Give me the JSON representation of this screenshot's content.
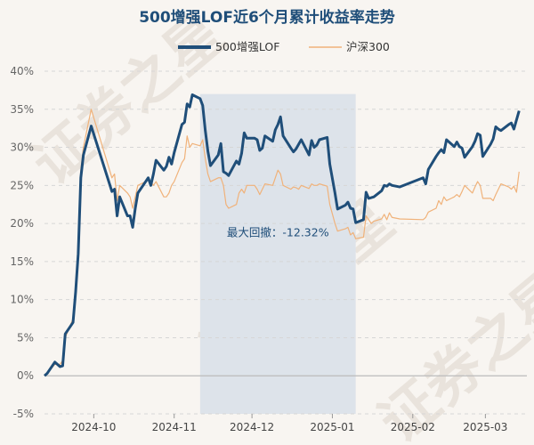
{
  "chart_data": {
    "type": "line",
    "title": "500增强LOF近6个月累计收益率走势",
    "legend": {
      "position": "top",
      "entries": [
        "500增强LOF",
        "沪深300"
      ]
    },
    "watermark": "证券之星",
    "colors": {
      "fund": "#1f4e79",
      "index": "#f0b27a",
      "drawdown_band": "#dde3ea",
      "zero_line": "#bbbbbb"
    },
    "grid": true,
    "y_axis": {
      "ticks": [
        -5,
        0,
        5,
        10,
        15,
        20,
        25,
        30,
        35,
        40
      ],
      "tick_labels": [
        "-5%",
        "0%",
        "5%",
        "10%",
        "15%",
        "20%",
        "25%",
        "30%",
        "35%",
        "40%"
      ],
      "ylim": [
        -5,
        40
      ]
    },
    "x_axis": {
      "range": [
        "2024-09-12",
        "2025-03-17"
      ],
      "ticks": [
        {
          "label": "2024-10",
          "date": "2024-10-01"
        },
        {
          "label": "2024-11",
          "date": "2024-11-01"
        },
        {
          "label": "2024-12",
          "date": "2024-12-01"
        },
        {
          "label": "2025-01",
          "date": "2025-01-01"
        },
        {
          "label": "2025-02",
          "date": "2025-02-01"
        },
        {
          "label": "2025-03",
          "date": "2025-03-01"
        }
      ]
    },
    "drawdown": {
      "label": "最大回撤：-12.32%",
      "start": "2024-11-11",
      "end": "2025-01-10"
    },
    "series": [
      {
        "name": "500增强LOF",
        "points": [
          [
            "2024-09-12",
            0.0
          ],
          [
            "2024-09-13",
            0.3
          ],
          [
            "2024-09-16",
            1.8
          ],
          [
            "2024-09-18",
            1.2
          ],
          [
            "2024-09-19",
            1.3
          ],
          [
            "2024-09-20",
            5.5
          ],
          [
            "2024-09-23",
            7.0
          ],
          [
            "2024-09-24",
            11.0
          ],
          [
            "2024-09-25",
            16.0
          ],
          [
            "2024-09-26",
            26.0
          ],
          [
            "2024-09-27",
            29.0
          ],
          [
            "2024-09-30",
            32.8
          ],
          [
            "2024-10-08",
            24.2
          ],
          [
            "2024-10-09",
            24.5
          ],
          [
            "2024-10-10",
            21.0
          ],
          [
            "2024-10-11",
            23.5
          ],
          [
            "2024-10-14",
            21.0
          ],
          [
            "2024-10-15",
            21.0
          ],
          [
            "2024-10-16",
            19.5
          ],
          [
            "2024-10-17",
            22.0
          ],
          [
            "2024-10-18",
            24.0
          ],
          [
            "2024-10-21",
            25.5
          ],
          [
            "2024-10-22",
            26.0
          ],
          [
            "2024-10-23",
            25.0
          ],
          [
            "2024-10-24",
            26.5
          ],
          [
            "2024-10-25",
            28.3
          ],
          [
            "2024-10-28",
            27.0
          ],
          [
            "2024-10-29",
            27.5
          ],
          [
            "2024-10-30",
            28.7
          ],
          [
            "2024-10-31",
            27.8
          ],
          [
            "2024-11-01",
            29.3
          ],
          [
            "2024-11-04",
            33.0
          ],
          [
            "2024-11-05",
            33.3
          ],
          [
            "2024-11-06",
            35.7
          ],
          [
            "2024-11-07",
            35.3
          ],
          [
            "2024-11-08",
            36.9
          ],
          [
            "2024-11-11",
            36.4
          ],
          [
            "2024-11-12",
            35.5
          ],
          [
            "2024-11-13",
            32.2
          ],
          [
            "2024-11-14",
            29.5
          ],
          [
            "2024-11-15",
            27.6
          ],
          [
            "2024-11-18",
            29.0
          ],
          [
            "2024-11-19",
            30.5
          ],
          [
            "2024-11-20",
            26.8
          ],
          [
            "2024-11-21",
            26.6
          ],
          [
            "2024-11-22",
            26.3
          ],
          [
            "2024-11-25",
            28.2
          ],
          [
            "2024-11-26",
            27.8
          ],
          [
            "2024-11-27",
            29.2
          ],
          [
            "2024-11-28",
            31.9
          ],
          [
            "2024-11-29",
            31.2
          ],
          [
            "2024-12-02",
            31.2
          ],
          [
            "2024-12-03",
            31.0
          ],
          [
            "2024-12-04",
            29.6
          ],
          [
            "2024-12-05",
            29.9
          ],
          [
            "2024-12-06",
            31.5
          ],
          [
            "2024-12-09",
            30.8
          ],
          [
            "2024-12-10",
            32.3
          ],
          [
            "2024-12-11",
            33.0
          ],
          [
            "2024-12-12",
            34.0
          ],
          [
            "2024-12-13",
            31.5
          ],
          [
            "2024-12-16",
            29.9
          ],
          [
            "2024-12-17",
            29.4
          ],
          [
            "2024-12-18",
            29.8
          ],
          [
            "2024-12-19",
            30.4
          ],
          [
            "2024-12-20",
            31.0
          ],
          [
            "2024-12-23",
            29.0
          ],
          [
            "2024-12-24",
            30.9
          ],
          [
            "2024-12-25",
            30.0
          ],
          [
            "2024-12-26",
            30.3
          ],
          [
            "2024-12-27",
            31.0
          ],
          [
            "2024-12-30",
            31.3
          ],
          [
            "2024-12-31",
            27.8
          ],
          [
            "2025-01-02",
            24.0
          ],
          [
            "2025-01-03",
            21.9
          ],
          [
            "2025-01-06",
            22.4
          ],
          [
            "2025-01-07",
            22.8
          ],
          [
            "2025-01-08",
            22.0
          ],
          [
            "2025-01-09",
            21.9
          ],
          [
            "2025-01-10",
            20.1
          ],
          [
            "2025-01-13",
            20.5
          ],
          [
            "2025-01-14",
            24.1
          ],
          [
            "2025-01-15",
            23.3
          ],
          [
            "2025-01-16",
            23.4
          ],
          [
            "2025-01-17",
            23.5
          ],
          [
            "2025-01-20",
            24.3
          ],
          [
            "2025-01-21",
            25.0
          ],
          [
            "2025-01-22",
            24.9
          ],
          [
            "2025-01-23",
            25.2
          ],
          [
            "2025-01-24",
            25.0
          ],
          [
            "2025-01-27",
            24.8
          ],
          [
            "2025-02-05",
            26.0
          ],
          [
            "2025-02-06",
            25.2
          ],
          [
            "2025-02-07",
            27.1
          ],
          [
            "2025-02-10",
            28.8
          ],
          [
            "2025-02-11",
            29.3
          ],
          [
            "2025-02-12",
            29.7
          ],
          [
            "2025-02-13",
            29.3
          ],
          [
            "2025-02-14",
            31.0
          ],
          [
            "2025-02-17",
            30.1
          ],
          [
            "2025-02-18",
            30.7
          ],
          [
            "2025-02-19",
            30.1
          ],
          [
            "2025-02-20",
            29.9
          ],
          [
            "2025-02-21",
            28.7
          ],
          [
            "2025-02-24",
            30.1
          ],
          [
            "2025-02-25",
            30.8
          ],
          [
            "2025-02-26",
            31.8
          ],
          [
            "2025-02-27",
            31.6
          ],
          [
            "2025-02-28",
            28.8
          ],
          [
            "2025-03-03",
            30.4
          ],
          [
            "2025-03-04",
            31.1
          ],
          [
            "2025-03-05",
            32.7
          ],
          [
            "2025-03-06",
            32.4
          ],
          [
            "2025-03-07",
            32.2
          ],
          [
            "2025-03-10",
            33.0
          ],
          [
            "2025-03-11",
            33.2
          ],
          [
            "2025-03-12",
            32.4
          ],
          [
            "2025-03-13",
            33.6
          ],
          [
            "2025-03-14",
            34.8
          ]
        ]
      },
      {
        "name": "沪深300",
        "points": [
          [
            "2024-09-12",
            0.0
          ],
          [
            "2024-09-13",
            0.3
          ],
          [
            "2024-09-16",
            1.5
          ],
          [
            "2024-09-18",
            1.5
          ],
          [
            "2024-09-19",
            2.0
          ],
          [
            "2024-09-20",
            5.0
          ],
          [
            "2024-09-23",
            7.5
          ],
          [
            "2024-09-24",
            12.0
          ],
          [
            "2024-09-25",
            17.0
          ],
          [
            "2024-09-26",
            27.0
          ],
          [
            "2024-09-27",
            30.0
          ],
          [
            "2024-09-30",
            35.0
          ],
          [
            "2024-10-08",
            26.0
          ],
          [
            "2024-10-09",
            26.5
          ],
          [
            "2024-10-10",
            23.0
          ],
          [
            "2024-10-11",
            25.0
          ],
          [
            "2024-10-14",
            24.0
          ],
          [
            "2024-10-15",
            23.5
          ],
          [
            "2024-10-16",
            22.0
          ],
          [
            "2024-10-17",
            23.5
          ],
          [
            "2024-10-18",
            25.0
          ],
          [
            "2024-10-21",
            25.5
          ],
          [
            "2024-10-22",
            26.0
          ],
          [
            "2024-10-23",
            25.5
          ],
          [
            "2024-10-24",
            25.0
          ],
          [
            "2024-10-25",
            25.5
          ],
          [
            "2024-10-28",
            23.5
          ],
          [
            "2024-10-29",
            23.5
          ],
          [
            "2024-10-30",
            24.0
          ],
          [
            "2024-10-31",
            25.0
          ],
          [
            "2024-11-01",
            25.5
          ],
          [
            "2024-11-04",
            28.0
          ],
          [
            "2024-11-05",
            28.5
          ],
          [
            "2024-11-06",
            31.5
          ],
          [
            "2024-11-07",
            30.0
          ],
          [
            "2024-11-08",
            30.5
          ],
          [
            "2024-11-11",
            30.2
          ],
          [
            "2024-11-12",
            31.0
          ],
          [
            "2024-11-13",
            28.5
          ],
          [
            "2024-11-14",
            26.5
          ],
          [
            "2024-11-15",
            25.5
          ],
          [
            "2024-11-18",
            26.0
          ],
          [
            "2024-11-19",
            26.0
          ],
          [
            "2024-11-20",
            25.0
          ],
          [
            "2024-11-21",
            22.5
          ],
          [
            "2024-11-22",
            22.0
          ],
          [
            "2024-11-25",
            22.5
          ],
          [
            "2024-11-26",
            24.0
          ],
          [
            "2024-11-27",
            24.5
          ],
          [
            "2024-11-28",
            24.0
          ],
          [
            "2024-11-29",
            25.0
          ],
          [
            "2024-12-02",
            25.0
          ],
          [
            "2024-12-03",
            24.5
          ],
          [
            "2024-12-04",
            23.8
          ],
          [
            "2024-12-05",
            24.5
          ],
          [
            "2024-12-06",
            25.2
          ],
          [
            "2024-12-09",
            25.0
          ],
          [
            "2024-12-10",
            26.0
          ],
          [
            "2024-12-11",
            27.0
          ],
          [
            "2024-12-12",
            26.5
          ],
          [
            "2024-12-13",
            25.0
          ],
          [
            "2024-12-16",
            24.5
          ],
          [
            "2024-12-17",
            24.8
          ],
          [
            "2024-12-18",
            24.7
          ],
          [
            "2024-12-19",
            24.5
          ],
          [
            "2024-12-20",
            25.0
          ],
          [
            "2024-12-23",
            24.6
          ],
          [
            "2024-12-24",
            25.2
          ],
          [
            "2024-12-25",
            25.0
          ],
          [
            "2024-12-26",
            25.0
          ],
          [
            "2024-12-27",
            25.2
          ],
          [
            "2024-12-30",
            24.9
          ],
          [
            "2024-12-31",
            22.5
          ],
          [
            "2025-01-02",
            20.0
          ],
          [
            "2025-01-03",
            19.0
          ],
          [
            "2025-01-06",
            19.3
          ],
          [
            "2025-01-07",
            19.5
          ],
          [
            "2025-01-08",
            18.5
          ],
          [
            "2025-01-09",
            18.8
          ],
          [
            "2025-01-10",
            18.0
          ],
          [
            "2025-01-13",
            18.2
          ],
          [
            "2025-01-14",
            21.0
          ],
          [
            "2025-01-15",
            20.5
          ],
          [
            "2025-01-16",
            20.0
          ],
          [
            "2025-01-17",
            20.3
          ],
          [
            "2025-01-20",
            20.6
          ],
          [
            "2025-01-21",
            21.2
          ],
          [
            "2025-01-22",
            20.5
          ],
          [
            "2025-01-23",
            21.4
          ],
          [
            "2025-01-24",
            20.8
          ],
          [
            "2025-01-27",
            20.6
          ],
          [
            "2025-02-05",
            20.5
          ],
          [
            "2025-02-06",
            20.8
          ],
          [
            "2025-02-07",
            21.5
          ],
          [
            "2025-02-10",
            22.0
          ],
          [
            "2025-02-11",
            23.0
          ],
          [
            "2025-02-12",
            22.5
          ],
          [
            "2025-02-13",
            23.5
          ],
          [
            "2025-02-14",
            23.0
          ],
          [
            "2025-02-17",
            23.5
          ],
          [
            "2025-02-18",
            23.8
          ],
          [
            "2025-02-19",
            23.5
          ],
          [
            "2025-02-20",
            24.2
          ],
          [
            "2025-02-21",
            25.0
          ],
          [
            "2025-02-24",
            24.0
          ],
          [
            "2025-02-25",
            24.8
          ],
          [
            "2025-02-26",
            25.5
          ],
          [
            "2025-02-27",
            25.0
          ],
          [
            "2025-02-28",
            23.3
          ],
          [
            "2025-03-03",
            23.3
          ],
          [
            "2025-03-04",
            23.0
          ],
          [
            "2025-03-05",
            23.8
          ],
          [
            "2025-03-06",
            24.5
          ],
          [
            "2025-03-07",
            25.2
          ],
          [
            "2025-03-10",
            24.8
          ],
          [
            "2025-03-11",
            24.5
          ],
          [
            "2025-03-12",
            24.9
          ],
          [
            "2025-03-13",
            24.1
          ],
          [
            "2025-03-14",
            26.8
          ]
        ]
      }
    ]
  }
}
